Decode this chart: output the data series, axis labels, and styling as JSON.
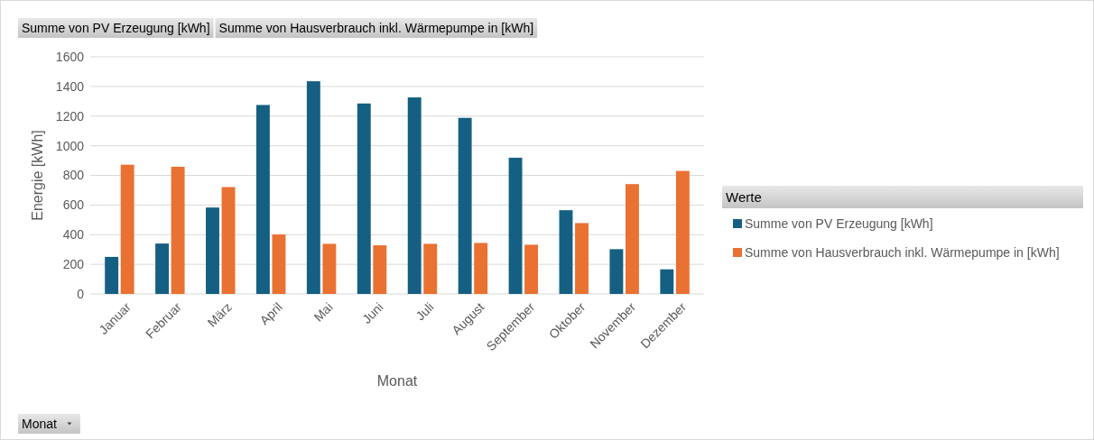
{
  "chart_data": {
    "type": "bar",
    "ylabel": "Energie [kWh]",
    "xlabel": "Monat",
    "legend_title": "Werte",
    "categories": [
      "Januar",
      "Februar",
      "März",
      "April",
      "Mai",
      "Juni",
      "Juli",
      "August",
      "September",
      "Oktober",
      "November",
      "Dezember"
    ],
    "series": [
      {
        "name": "Summe von PV Erzeugung [kWh]",
        "color": "#156082",
        "values": [
          250,
          340,
          583,
          1275,
          1435,
          1285,
          1326,
          1188,
          919,
          565,
          302,
          166
        ]
      },
      {
        "name": "Summe von Hausverbrauch inkl. Wärmepumpe in [kWh]",
        "color": "#e97132",
        "values": [
          872,
          858,
          721,
          401,
          338,
          328,
          338,
          344,
          332,
          478,
          741,
          830
        ]
      }
    ],
    "ylim": [
      0,
      1600
    ],
    "yticks": [
      0,
      200,
      400,
      600,
      800,
      1000,
      1200,
      1400,
      1600
    ],
    "grid": "y",
    "legend": "right",
    "annotations": [
      "Summe von PV Erzeugung [kWh]",
      "Summe von Hausverbrauch inkl. Wärmepumpe in [kWh]",
      "Monat"
    ]
  }
}
